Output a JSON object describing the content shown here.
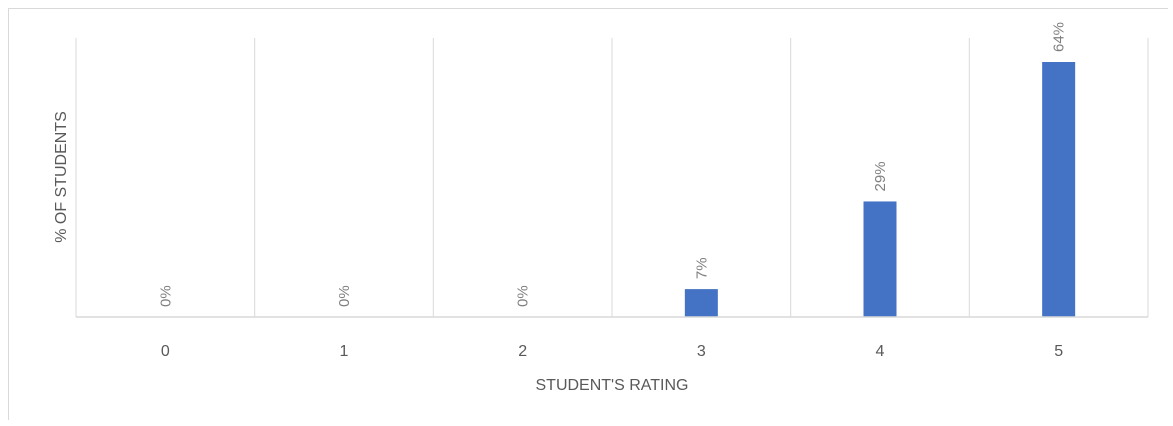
{
  "chart_data": {
    "type": "bar",
    "categories": [
      "0",
      "1",
      "2",
      "3",
      "4",
      "5"
    ],
    "values": [
      0,
      0,
      0,
      7,
      29,
      64
    ],
    "data_labels": [
      "0%",
      "0%",
      "0%",
      "7%",
      "29%",
      "64%"
    ],
    "title": "",
    "xlabel": "STUDENT'S RATING",
    "ylabel": "% OF STUDENTS",
    "ylim": [
      0,
      70
    ],
    "grid": "vertical",
    "legend": "none",
    "bar_color": "#4472c4",
    "grid_color": "#d9d9d9"
  }
}
